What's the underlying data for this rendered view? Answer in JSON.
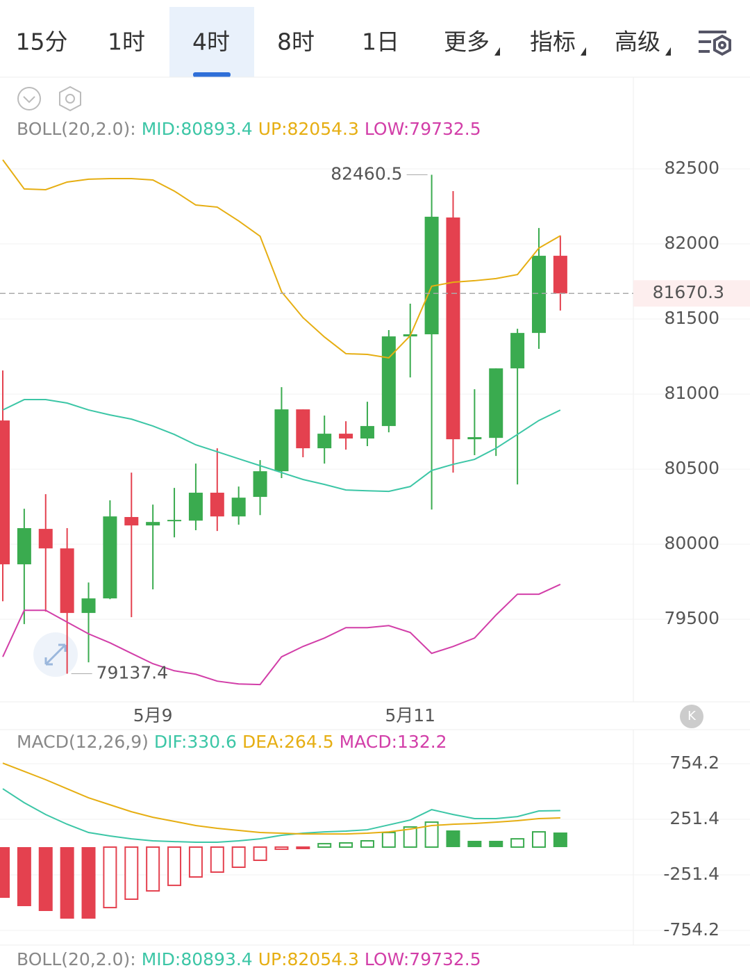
{
  "tabs": [
    "15分",
    "1时",
    "4时",
    "8时",
    "1日",
    "更多",
    "指标",
    "高级"
  ],
  "active_tab": 2,
  "chart_data": [
    {
      "type": "candlestick",
      "indicator": "BOLL(20,2.0):",
      "mid_label": "MID:80893.4",
      "up_label": "UP:82054.3",
      "low_label": "LOW:79732.5",
      "categories": [
        null,
        null,
        null,
        null,
        null,
        null,
        null,
        "5月9",
        null,
        null,
        null,
        null,
        null,
        null,
        null,
        null,
        null,
        null,
        null,
        "5月11",
        null,
        null,
        null,
        null,
        null,
        null,
        null
      ],
      "open": [
        80824,
        79866,
        80102,
        79972,
        79542,
        79639,
        80181,
        80125,
        80153,
        80157,
        80343,
        80185,
        80315,
        80486,
        80898,
        80639,
        80736,
        80704,
        80787,
        81384,
        81398,
        82176,
        80699,
        80708,
        81171,
        81407,
        81921
      ],
      "high": [
        81157,
        80236,
        80333,
        80107,
        79745,
        80292,
        80477,
        80264,
        80375,
        80537,
        80639,
        80384,
        80560,
        81046,
        80898,
        80857,
        80819,
        80949,
        81426,
        81602,
        82460.5,
        82352,
        81032,
        81171,
        81435,
        82106,
        82056
      ],
      "low": [
        79620,
        79468,
        79551,
        79137.4,
        79213,
        79634,
        79514,
        79699,
        80046,
        80093,
        80088,
        80130,
        80194,
        80440,
        80579,
        80537,
        80630,
        80653,
        80745,
        81111,
        80231,
        80477,
        80593,
        80588,
        80398,
        81301,
        81556
      ],
      "close": [
        79866,
        80107,
        79972,
        79542,
        79639,
        80185,
        80125,
        80148,
        80162,
        80343,
        80185,
        80310,
        80486,
        80898,
        80639,
        80736,
        80704,
        80787,
        81384,
        81398,
        82181,
        80699,
        80713,
        81171,
        81407,
        81921,
        81670.3
      ],
      "up_color": "#3aab4f",
      "down_color": "#e4414f",
      "series": [
        {
          "name": "UP",
          "color": "#e6ae12",
          "values": [
            82560,
            82366,
            82361,
            82412,
            82431,
            82435,
            82435,
            82426,
            82352,
            82259,
            82245,
            82153,
            82051,
            81681,
            81509,
            81380,
            81269,
            81264,
            81241,
            81389,
            81718,
            81745,
            81755,
            81769,
            81796,
            81972,
            82054.3
          ]
        },
        {
          "name": "MID",
          "color": "#3cc6a6",
          "values": [
            80894,
            80963,
            80963,
            80940,
            80894,
            80861,
            80833,
            80787,
            80731,
            80662,
            80616,
            80569,
            80523,
            80477,
            80431,
            80398,
            80361,
            80356,
            80352,
            80384,
            80491,
            80532,
            80565,
            80639,
            80731,
            80824,
            80893.4
          ]
        },
        {
          "name": "LOW",
          "color": "#d23ea8",
          "values": [
            79250,
            79560,
            79560,
            79481,
            79403,
            79343,
            79273,
            79204,
            79157,
            79134,
            79088,
            79069,
            79065,
            79250,
            79319,
            79375,
            79444,
            79444,
            79458,
            79412,
            79273,
            79319,
            79375,
            79528,
            79667,
            79667,
            79732.5
          ]
        }
      ],
      "ylim": [
        78950,
        82560
      ],
      "yticks": [
        82500,
        82000,
        81500,
        81000,
        80500,
        80000,
        79500
      ],
      "grid": true
    },
    {
      "type": "macd",
      "indicator": "MACD(12,26,9)",
      "dif_label": "DIF:330.6",
      "dea_label": "DEA:264.5",
      "macd_label": "MACD:132.2",
      "values": [
        -459,
        -534,
        -578,
        -647,
        -647,
        -547,
        -471,
        -396,
        -346,
        -270,
        -226,
        -182,
        -119,
        -19,
        -3,
        31,
        38,
        57,
        132,
        182,
        226,
        151,
        57,
        57,
        75,
        138,
        132.2
      ],
      "up_color": "#3aab4f",
      "down_color": "#e4414f",
      "series": [
        {
          "name": "DIF",
          "color": "#3cc6a6",
          "values": [
            528,
            402,
            295,
            207,
            132,
            101,
            75,
            57,
            50,
            44,
            44,
            57,
            75,
            107,
            126,
            138,
            145,
            157,
            201,
            245,
            339,
            295,
            258,
            258,
            276,
            327,
            330.6
          ]
        },
        {
          "name": "DEA",
          "color": "#e6ae12",
          "values": [
            760,
            685,
            610,
            528,
            446,
            383,
            320,
            270,
            233,
            195,
            170,
            151,
            132,
            126,
            119,
            119,
            119,
            126,
            138,
            163,
            195,
            207,
            214,
            226,
            239,
            258,
            264.5
          ]
        }
      ],
      "ylim": [
        -886,
        1050
      ],
      "yticks": [
        754.2,
        251.4,
        -251.4,
        -754.2
      ],
      "grid": true
    }
  ]
}
